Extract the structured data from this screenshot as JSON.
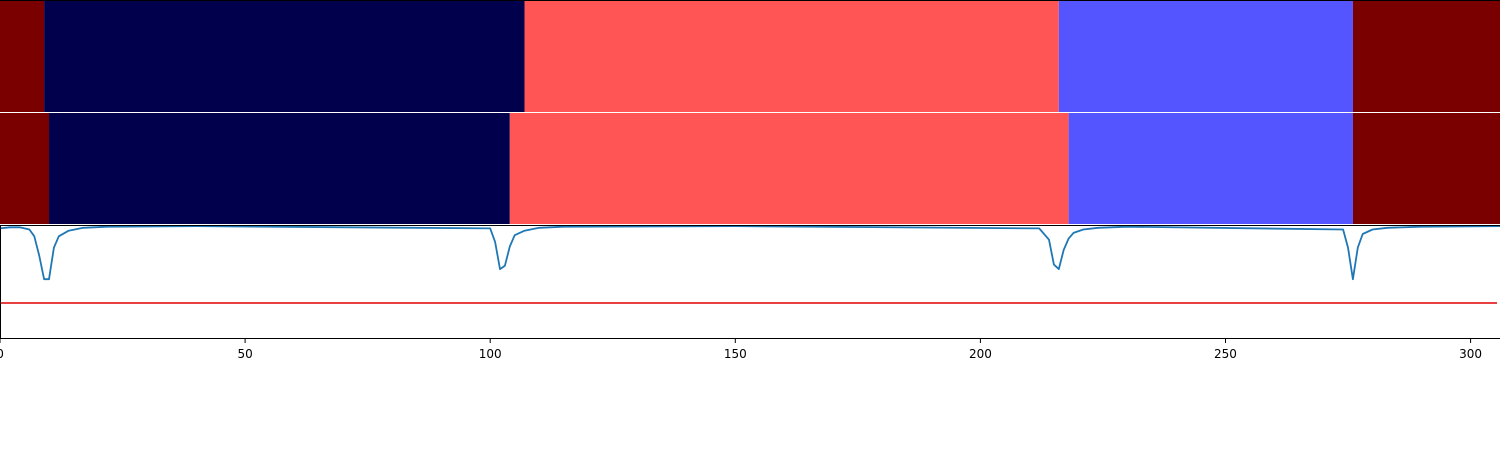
{
  "chart_data": {
    "type": "segmentation",
    "xlim": [
      0,
      306
    ],
    "x_ticks": [
      0,
      50,
      100,
      150,
      200,
      250,
      300
    ],
    "tick_labels": [
      "0",
      "50",
      "100",
      "150",
      "200",
      "250",
      "300"
    ],
    "colors": {
      "class_a": "#7a0000",
      "class_b": "#00004c",
      "class_c": "#ff5555",
      "class_d": "#5555ff",
      "line": "#1f77b4",
      "threshold": "#e00000"
    },
    "segment_tracks": [
      {
        "segments": [
          {
            "start": 0,
            "end": 9,
            "class": "class_a"
          },
          {
            "start": 9,
            "end": 107,
            "class": "class_b"
          },
          {
            "start": 107,
            "end": 216,
            "class": "class_c"
          },
          {
            "start": 216,
            "end": 276,
            "class": "class_d"
          },
          {
            "start": 276,
            "end": 306,
            "class": "class_a"
          }
        ]
      },
      {
        "segments": [
          {
            "start": 0,
            "end": 10,
            "class": "class_a"
          },
          {
            "start": 10,
            "end": 104,
            "class": "class_b"
          },
          {
            "start": 104,
            "end": 218,
            "class": "class_c"
          },
          {
            "start": 218,
            "end": 276,
            "class": "class_d"
          },
          {
            "start": 276,
            "end": 306,
            "class": "class_a"
          }
        ]
      }
    ],
    "signal": {
      "ylim": [
        0,
        1
      ],
      "threshold": 0.31,
      "x": [
        0,
        2,
        4,
        6,
        7,
        8,
        9,
        10,
        11,
        12,
        14,
        17,
        22,
        40,
        100,
        101,
        102,
        103,
        104,
        105,
        107,
        110,
        115,
        150,
        212,
        214,
        215,
        216,
        217,
        218,
        219,
        221,
        224,
        230,
        274,
        275,
        276,
        277,
        278,
        280,
        283,
        290,
        306
      ],
      "y": [
        0.97,
        0.98,
        0.98,
        0.96,
        0.9,
        0.73,
        0.52,
        0.52,
        0.8,
        0.9,
        0.95,
        0.975,
        0.985,
        0.99,
        0.97,
        0.85,
        0.61,
        0.64,
        0.81,
        0.91,
        0.95,
        0.975,
        0.985,
        0.99,
        0.97,
        0.87,
        0.65,
        0.61,
        0.78,
        0.88,
        0.93,
        0.96,
        0.975,
        0.985,
        0.96,
        0.8,
        0.52,
        0.8,
        0.92,
        0.96,
        0.975,
        0.985,
        0.99
      ]
    }
  }
}
